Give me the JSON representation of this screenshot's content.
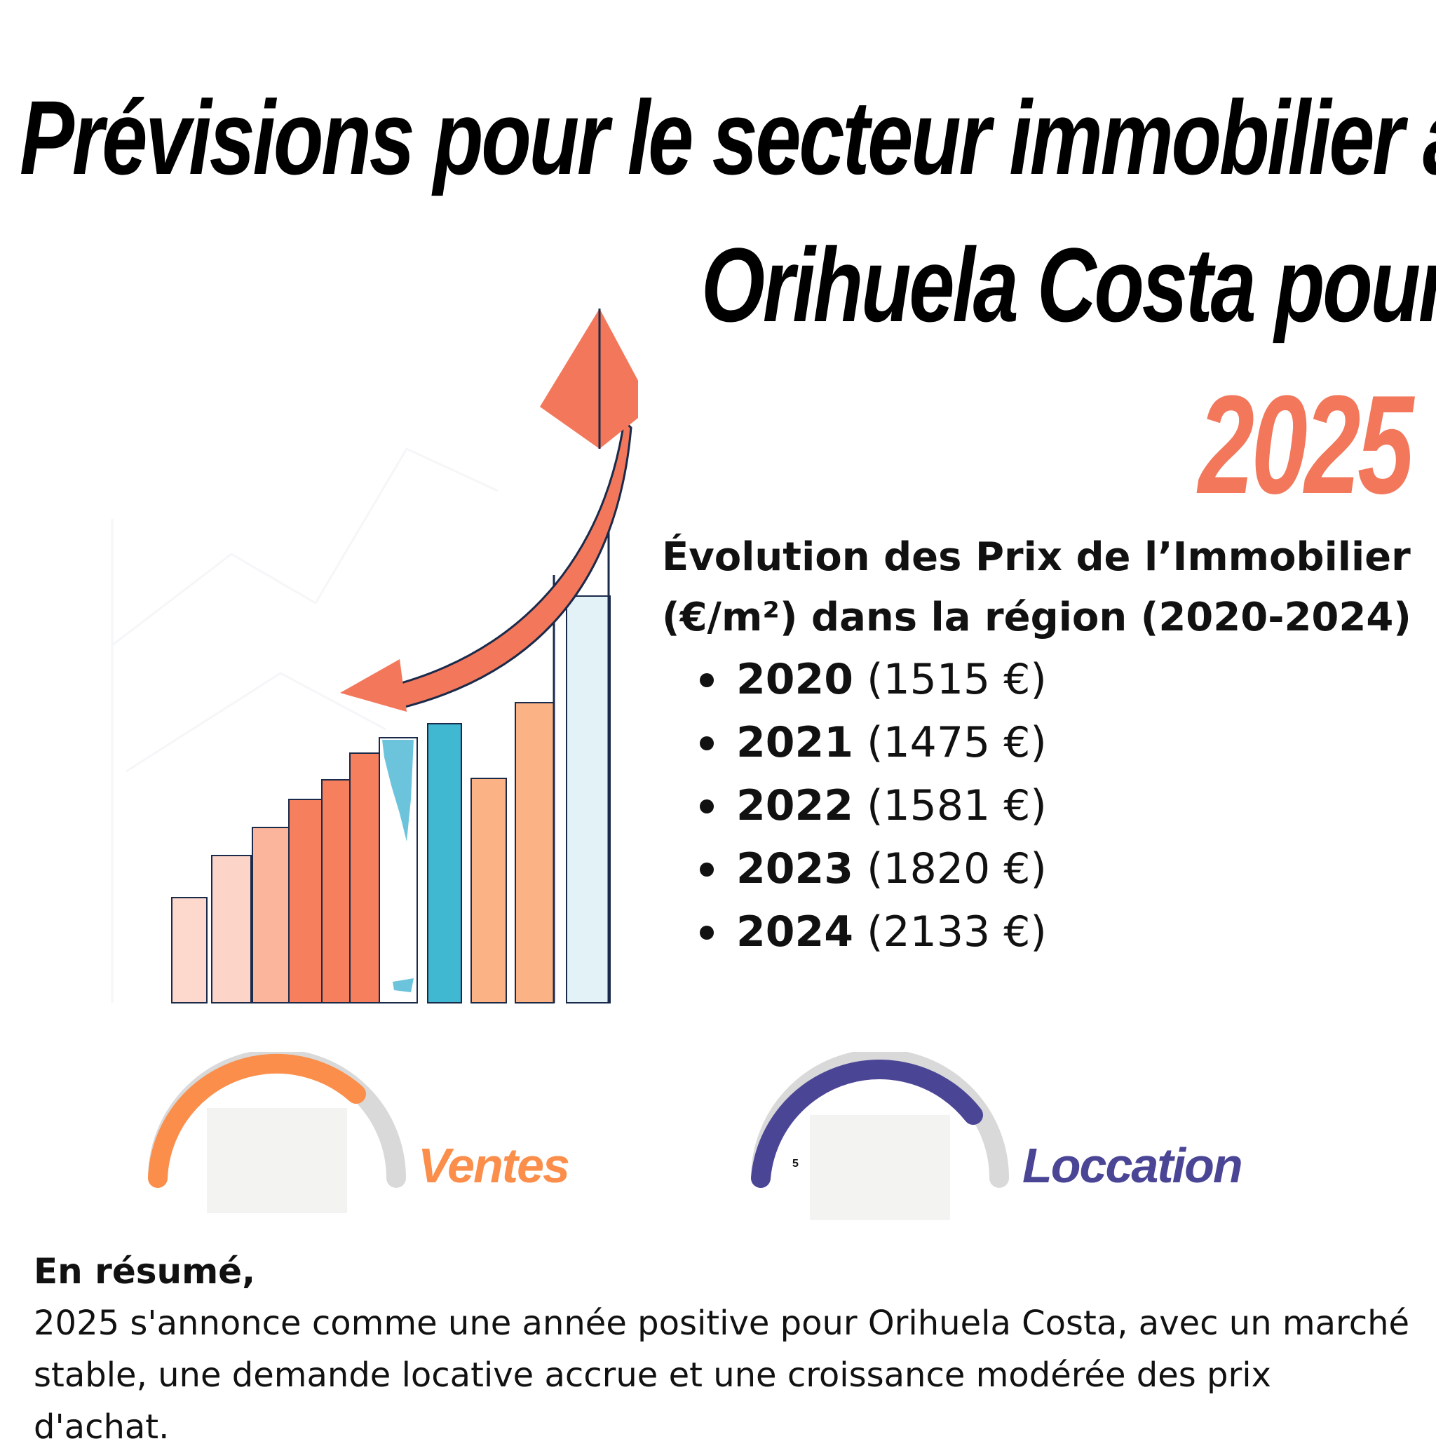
{
  "title": {
    "line1": "Prévisions pour le secteur immobilier a",
    "line2": "Orihuela Costa pour",
    "year": "2025"
  },
  "evolution": {
    "heading_line1": "Évolution des Prix de l’Immobilier",
    "heading_line2": "(€/m²) dans la région (2020-2024)",
    "items": [
      {
        "year": "2020",
        "price": "(1515 €)"
      },
      {
        "year": "2021",
        "price": "(1475 €)"
      },
      {
        "year": "2022",
        "price": "(1581 €)"
      },
      {
        "year": "2023",
        "price": "(1820 €)"
      },
      {
        "year": "2024",
        "price": "(2133 €)"
      }
    ]
  },
  "gauges": {
    "sales": {
      "label": "Ventes",
      "color": "#fa8e4a"
    },
    "rent": {
      "label": "Loccation",
      "value_text": "5",
      "color": "#4b4596"
    }
  },
  "summary": {
    "heading": "En résumé,",
    "text": "2025 s'annonce comme une année positive pour Orihuela Costa, avec un marché stable, une demande locative accrue et une croissance modérée des prix d'achat."
  },
  "colors": {
    "accent": "#f2775b",
    "sales": "#fa8e4a",
    "rent": "#4b4596",
    "track": "#d9d9d9"
  }
}
